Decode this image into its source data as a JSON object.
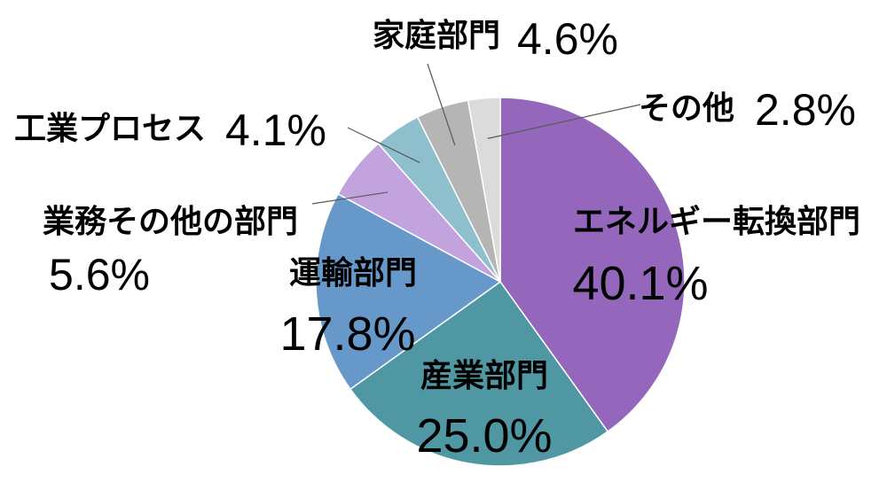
{
  "chart_data": {
    "type": "pie",
    "title": "",
    "start": "12 o'clock",
    "direction": "clockwise",
    "slices": [
      {
        "label": "エネルギー転換部門",
        "value": 40.1,
        "display": "40.1%",
        "color": "#9467bd"
      },
      {
        "label": "産業部門",
        "value": 25.0,
        "display": "25.0%",
        "color": "#4f97a3"
      },
      {
        "label": "運輸部門",
        "value": 17.8,
        "display": "17.8%",
        "color": "#6699c9"
      },
      {
        "label": "業務その他の部門",
        "value": 5.6,
        "display": "5.6%",
        "color": "#c2a3dd"
      },
      {
        "label": "工業プロセス",
        "value": 4.1,
        "display": "4.1%",
        "color": "#8dbfcc"
      },
      {
        "label": "家庭部門",
        "value": 4.6,
        "display": "4.6%",
        "color": "#b5b5b5"
      },
      {
        "label": "その他",
        "value": 2.8,
        "display": "2.8%",
        "color": "#dbdbdb"
      }
    ]
  }
}
